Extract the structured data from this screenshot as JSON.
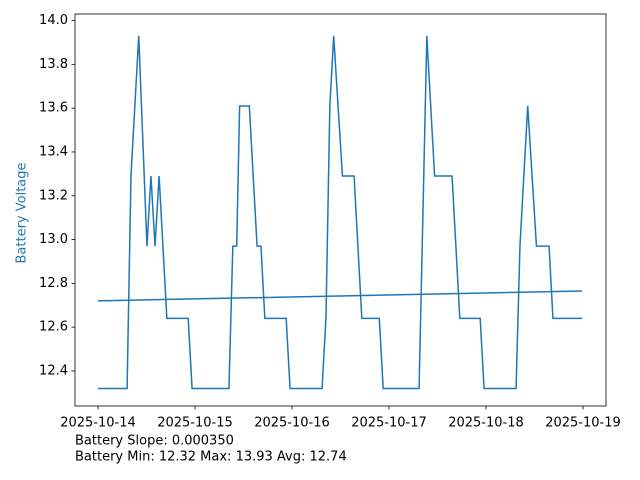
{
  "chart_data": {
    "type": "line",
    "ylabel": "Battery Voltage",
    "ylabel_color": "#1f77b4",
    "grid": false,
    "xlim": [
      -0.237,
      5.237
    ],
    "ylim": [
      12.24,
      14.03
    ],
    "xticks": [
      {
        "value": 0,
        "label": "2025-10-14"
      },
      {
        "value": 1,
        "label": "2025-10-15"
      },
      {
        "value": 2,
        "label": "2025-10-16"
      },
      {
        "value": 3,
        "label": "2025-10-17"
      },
      {
        "value": 4,
        "label": "2025-10-18"
      },
      {
        "value": 5,
        "label": "2025-10-19"
      }
    ],
    "yticks": [
      12.4,
      12.6,
      12.8,
      {
        "value": 13,
        "label": "13.0"
      },
      13.2,
      13.4,
      13.6,
      13.8,
      {
        "value": 14,
        "label": "14.0"
      }
    ],
    "series": [
      {
        "color": "#1f77b4",
        "x": [
          0,
          0.3,
          0.34,
          0.42,
          0.505,
          0.546,
          0.588,
          0.63,
          0.71,
          0.93,
          0.97,
          1.35,
          1.39,
          1.43,
          1.46,
          1.56,
          1.64,
          1.68,
          1.72,
          1.94,
          1.98,
          2.31,
          2.35,
          2.39,
          2.43,
          2.52,
          2.64,
          2.72,
          2.9,
          2.94,
          3.31,
          3.39,
          3.47,
          3.65,
          3.73,
          3.94,
          3.98,
          4.31,
          4.35,
          4.43,
          4.52,
          4.65,
          4.69,
          4.99
        ],
        "values": [
          12.32,
          12.32,
          13.29,
          13.93,
          12.97,
          13.29,
          12.97,
          13.29,
          12.64,
          12.64,
          12.32,
          12.32,
          12.97,
          12.97,
          13.61,
          13.61,
          12.97,
          12.97,
          12.64,
          12.64,
          12.32,
          12.32,
          12.64,
          13.61,
          13.93,
          13.29,
          13.29,
          12.64,
          12.64,
          12.32,
          12.32,
          13.93,
          13.29,
          13.29,
          12.64,
          12.64,
          12.32,
          12.32,
          12.97,
          13.61,
          12.97,
          12.97,
          12.64,
          12.64
        ]
      },
      {
        "color": "#1f77b4",
        "x": [
          0,
          4.99
        ],
        "values": [
          12.72,
          12.765
        ]
      }
    ],
    "footer": [
      "Battery Slope: 0.000350",
      "Battery Min: 12.32 Max: 13.93 Avg: 12.74"
    ]
  }
}
